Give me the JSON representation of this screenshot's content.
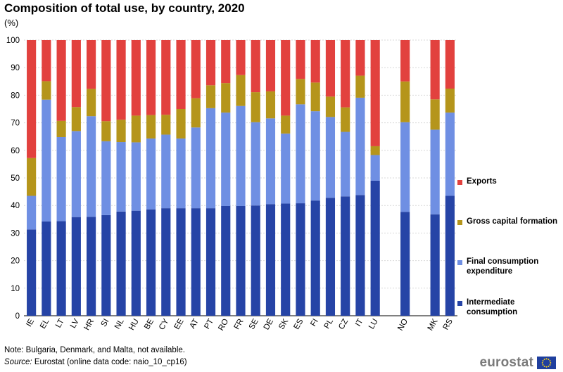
{
  "header": {
    "title": "Composition of total use, by country, 2020",
    "unit": "(%)"
  },
  "chart_data": {
    "type": "bar",
    "stacked": true,
    "title": "Composition of total use, by country, 2020",
    "ylabel": "(%)",
    "xlabel": "",
    "ylim": [
      0,
      100
    ],
    "yticks": [
      0,
      10,
      20,
      30,
      40,
      50,
      60,
      70,
      80,
      90,
      100
    ],
    "grid": true,
    "legend_position": "right",
    "categories": [
      "IE",
      "EL",
      "LT",
      "LV",
      "HR",
      "SI",
      "NL",
      "HU",
      "BE",
      "CY",
      "EE",
      "AT",
      "PT",
      "RO",
      "FR",
      "SE",
      "DE",
      "SK",
      "ES",
      "FI",
      "PL",
      "CZ",
      "IT",
      "LU",
      "",
      "NO",
      "",
      "MK",
      "RS"
    ],
    "series": [
      {
        "name": "Intermediate consumption",
        "color": "#2644a6",
        "values": [
          31.3,
          34.2,
          34.3,
          35.8,
          35.9,
          36.5,
          37.8,
          38.1,
          38.6,
          39.0,
          39.0,
          39.0,
          39.0,
          39.8,
          39.8,
          40.0,
          40.5,
          40.7,
          40.8,
          41.8,
          42.8,
          43.3,
          43.8,
          49.0,
          null,
          37.7,
          null,
          36.8,
          43.5
        ]
      },
      {
        "name": "Final consumption expenditure",
        "color": "#6f8fe3",
        "values": [
          12.2,
          44.2,
          30.5,
          31.2,
          36.5,
          26.8,
          25.2,
          24.8,
          25.7,
          26.7,
          25.3,
          29.3,
          36.3,
          33.9,
          36.3,
          30.2,
          31.1,
          25.4,
          35.9,
          32.4,
          29.3,
          23.4,
          35.3,
          9.3,
          null,
          32.5,
          null,
          30.7,
          30.2
        ]
      },
      {
        "name": "Gross capital formation",
        "color": "#b5951b",
        "values": [
          13.7,
          6.7,
          5.9,
          8.7,
          9.9,
          7.3,
          8.1,
          9.7,
          8.5,
          7.2,
          10.7,
          10.6,
          8.3,
          10.7,
          11.2,
          10.9,
          9.8,
          6.5,
          9.2,
          10.4,
          7.4,
          8.9,
          8.0,
          3.2,
          null,
          14.8,
          null,
          11.0,
          8.7
        ]
      },
      {
        "name": "Exports",
        "color": "#e2413e",
        "values": [
          42.8,
          14.9,
          29.3,
          24.3,
          17.7,
          29.4,
          28.9,
          27.4,
          27.2,
          27.1,
          25.0,
          21.1,
          16.4,
          15.6,
          12.7,
          18.9,
          18.6,
          27.4,
          14.1,
          15.4,
          20.5,
          24.4,
          12.9,
          38.5,
          null,
          15.0,
          null,
          21.5,
          17.6
        ]
      }
    ]
  },
  "legend": [
    {
      "label": "Exports",
      "color": "#e2413e"
    },
    {
      "label": "Gross capital formation",
      "color": "#b5951b"
    },
    {
      "label": "Final consumption expenditure",
      "color": "#6f8fe3"
    },
    {
      "label": "Intermediate consumption",
      "color": "#2644a6"
    }
  ],
  "footer": {
    "note": "Note: Bulgaria, Denmark, and Malta, not available.",
    "source_label": "Source:",
    "source_text": " Eurostat (online data code: naio_10_cp16)",
    "logo_text": "eurostat"
  }
}
